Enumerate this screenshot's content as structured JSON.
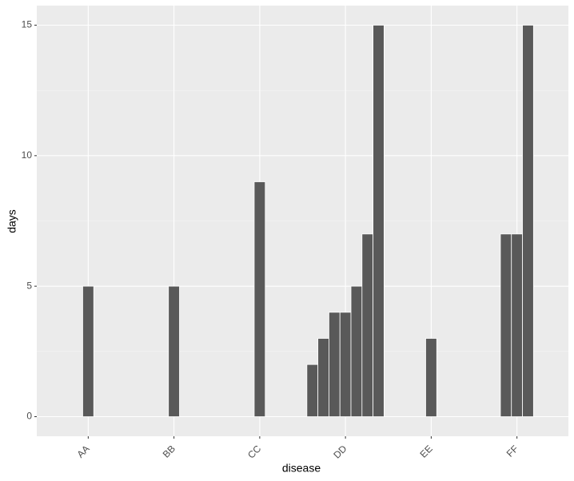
{
  "chart_data": {
    "type": "dodged-bar",
    "x_label": "disease",
    "y_label": "days",
    "categories": [
      "AA",
      "BB",
      "CC",
      "DD",
      "EE",
      "FF"
    ],
    "values": [
      [
        5
      ],
      [
        5
      ],
      [
        9
      ],
      [
        2,
        3,
        4,
        4,
        5,
        7,
        15
      ],
      [
        3
      ],
      [
        7,
        7,
        15
      ]
    ],
    "color": "#595959",
    "ylim": [
      -0.75,
      15.75
    ],
    "yticks": [
      0,
      5,
      10,
      15
    ],
    "minor_yticks": [
      2.5,
      7.5,
      12.5
    ],
    "grid": true
  }
}
